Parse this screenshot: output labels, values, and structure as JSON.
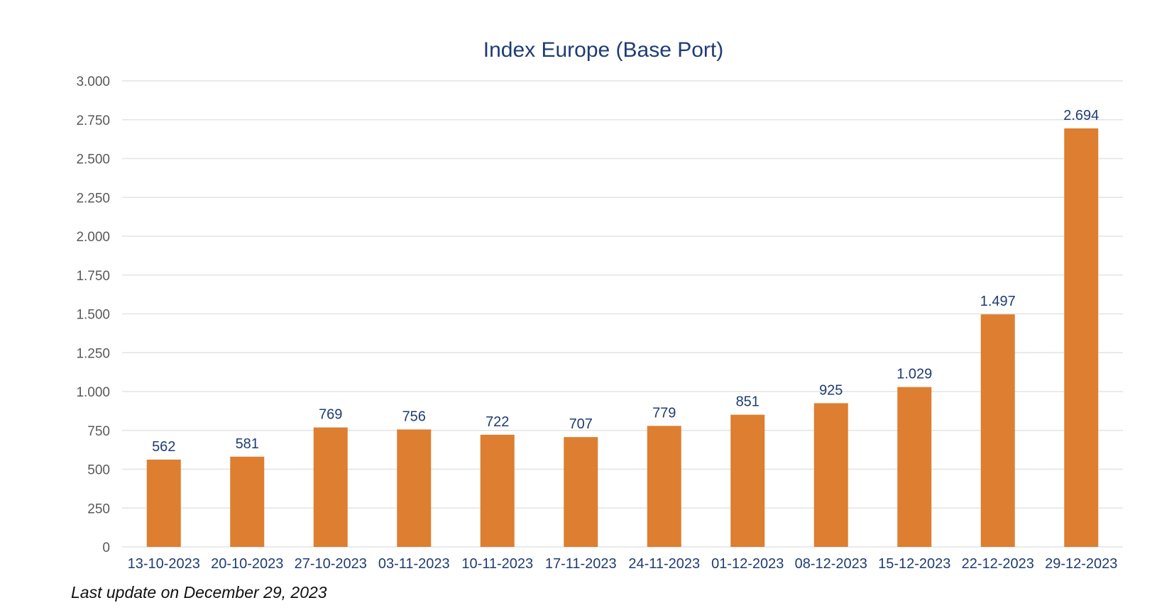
{
  "chart_data": {
    "type": "bar",
    "title": "Index Europe (Base Port)",
    "xlabel": "",
    "ylabel": "",
    "categories": [
      "13-10-2023",
      "20-10-2023",
      "27-10-2023",
      "03-11-2023",
      "10-11-2023",
      "17-11-2023",
      "24-11-2023",
      "01-12-2023",
      "08-12-2023",
      "15-12-2023",
      "22-12-2023",
      "29-12-2023"
    ],
    "values": [
      562,
      581,
      769,
      756,
      722,
      707,
      779,
      851,
      925,
      1029,
      1497,
      2694
    ],
    "value_labels": [
      "562",
      "581",
      "769",
      "756",
      "722",
      "707",
      "779",
      "851",
      "925",
      "1.029",
      "1.497",
      "2.694"
    ],
    "ylim": [
      0,
      3000
    ],
    "yticks": [
      0,
      250,
      500,
      750,
      1000,
      1250,
      1500,
      1750,
      2000,
      2250,
      2500,
      2750,
      3000
    ],
    "ytick_labels": [
      "0",
      "250",
      "500",
      "750",
      "1.000",
      "1.250",
      "1.500",
      "1.750",
      "2.000",
      "2.250",
      "2.500",
      "2.750",
      "3.000"
    ],
    "grid": true,
    "legend": "none",
    "colors": {
      "bar": "#dd7e30",
      "title": "#1f3c73",
      "data_label": "#1f3c73",
      "category_label": "#1f3c73",
      "ytick_label": "#595959",
      "grid": "#e3e3e3"
    }
  },
  "footnote": "Last update on December 29, 2023"
}
